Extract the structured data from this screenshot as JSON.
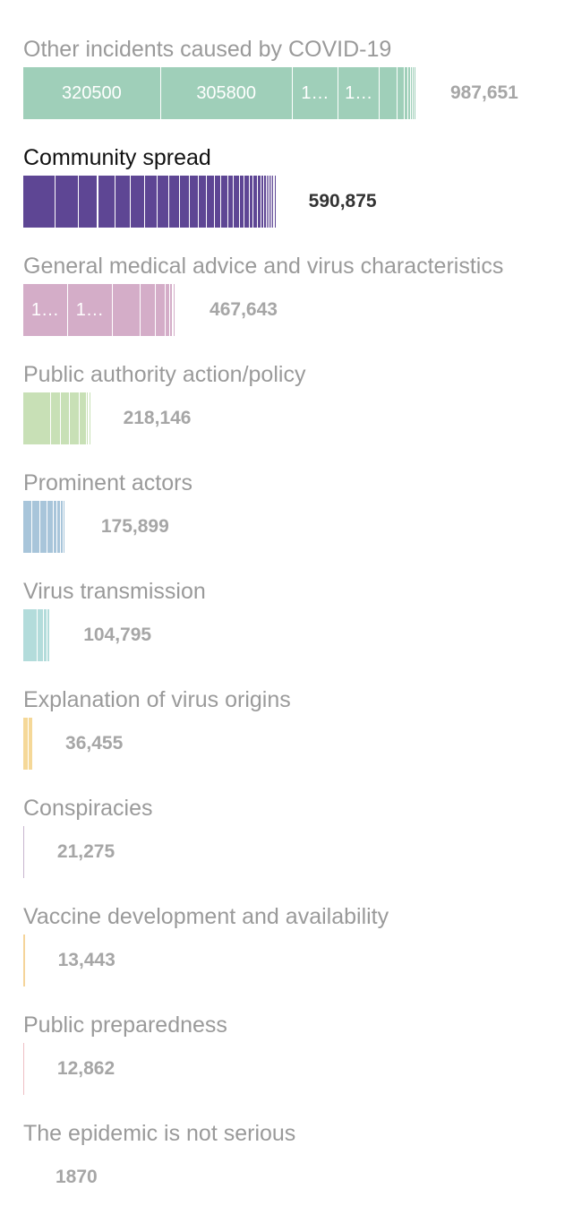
{
  "chart_data": {
    "type": "bar",
    "orientation": "horizontal",
    "stacked": true,
    "legend": "none",
    "grid": false,
    "xlim": [
      0,
      987651
    ],
    "categories": [
      {
        "label": "Other incidents caused by COVID-19",
        "total": "987,651",
        "value": 987651,
        "color": "#9fcfb9",
        "highlight": false,
        "segments": [
          {
            "value": 320500,
            "label": "320500"
          },
          {
            "value": 305800,
            "label": "305800"
          },
          {
            "value": 108000,
            "label": "1…"
          },
          {
            "value": 95000,
            "label": "1…"
          },
          {
            "value": 42000,
            "label": ""
          },
          {
            "value": 16000,
            "label": ""
          },
          {
            "value": 9000,
            "label": ""
          },
          {
            "value": 6000,
            "label": ""
          },
          {
            "value": 5000,
            "label": ""
          },
          {
            "value": 4000,
            "label": ""
          },
          {
            "value": 3000,
            "label": ""
          },
          {
            "value": 2500,
            "label": ""
          },
          {
            "value": 2000,
            "label": ""
          }
        ]
      },
      {
        "label": "Community spread",
        "total": "590,875",
        "value": 590875,
        "color": "#5e4694",
        "highlight": true,
        "segments": [
          {
            "value": 76000,
            "label": ""
          },
          {
            "value": 54000,
            "label": ""
          },
          {
            "value": 44000,
            "label": ""
          },
          {
            "value": 40000,
            "label": ""
          },
          {
            "value": 36000,
            "label": ""
          },
          {
            "value": 33000,
            "label": ""
          },
          {
            "value": 30000,
            "label": ""
          },
          {
            "value": 27000,
            "label": ""
          },
          {
            "value": 25000,
            "label": ""
          },
          {
            "value": 23000,
            "label": ""
          },
          {
            "value": 21000,
            "label": ""
          },
          {
            "value": 19000,
            "label": ""
          },
          {
            "value": 17500,
            "label": ""
          },
          {
            "value": 16000,
            "label": ""
          },
          {
            "value": 15000,
            "label": ""
          },
          {
            "value": 14000,
            "label": ""
          },
          {
            "value": 13000,
            "label": ""
          },
          {
            "value": 12000,
            "label": ""
          },
          {
            "value": 11000,
            "label": ""
          },
          {
            "value": 10000,
            "label": ""
          },
          {
            "value": 9000,
            "label": ""
          },
          {
            "value": 8000,
            "label": ""
          },
          {
            "value": 7000,
            "label": ""
          },
          {
            "value": 6000,
            "label": ""
          },
          {
            "value": 5000,
            "label": ""
          },
          {
            "value": 4500,
            "label": ""
          },
          {
            "value": 4000,
            "label": ""
          },
          {
            "value": 3500,
            "label": ""
          },
          {
            "value": 3000,
            "label": ""
          },
          {
            "value": 2500,
            "label": ""
          }
        ]
      },
      {
        "label": "General medical advice and virus characteristics",
        "total": "467,643",
        "value": 467643,
        "color": "#d4adc8",
        "highlight": false,
        "segments": [
          {
            "value": 104000,
            "label": "1…"
          },
          {
            "value": 104000,
            "label": "1…"
          },
          {
            "value": 64000,
            "label": ""
          },
          {
            "value": 37000,
            "label": ""
          },
          {
            "value": 22000,
            "label": ""
          },
          {
            "value": 10000,
            "label": ""
          },
          {
            "value": 6000,
            "label": ""
          },
          {
            "value": 4000,
            "label": ""
          },
          {
            "value": 3000,
            "label": ""
          },
          {
            "value": 2500,
            "label": ""
          },
          {
            "value": 2000,
            "label": ""
          }
        ]
      },
      {
        "label": "Public authority action/policy",
        "total": "218,146",
        "value": 218146,
        "color": "#c8e0b6",
        "highlight": false,
        "segments": [
          {
            "value": 64000,
            "label": ""
          },
          {
            "value": 23000,
            "label": ""
          },
          {
            "value": 22000,
            "label": ""
          },
          {
            "value": 23000,
            "label": ""
          },
          {
            "value": 15000,
            "label": ""
          },
          {
            "value": 5000,
            "label": ""
          },
          {
            "value": 3000,
            "label": ""
          },
          {
            "value": 2500,
            "label": ""
          }
        ]
      },
      {
        "label": "Prominent actors",
        "total": "175,899",
        "value": 175899,
        "color": "#a8c5da",
        "highlight": false,
        "segments": [
          {
            "value": 21000,
            "label": ""
          },
          {
            "value": 19000,
            "label": ""
          },
          {
            "value": 16000,
            "label": ""
          },
          {
            "value": 14000,
            "label": ""
          },
          {
            "value": 10000,
            "label": ""
          },
          {
            "value": 8000,
            "label": ""
          },
          {
            "value": 5000,
            "label": ""
          },
          {
            "value": 4000,
            "label": ""
          },
          {
            "value": 3000,
            "label": ""
          },
          {
            "value": 2500,
            "label": ""
          },
          {
            "value": 2000,
            "label": ""
          },
          {
            "value": 1500,
            "label": ""
          }
        ]
      },
      {
        "label": "Virus transmission",
        "total": "104,795",
        "value": 104795,
        "color": "#b3dcdb",
        "highlight": false,
        "segments": [
          {
            "value": 34000,
            "label": ""
          },
          {
            "value": 13000,
            "label": ""
          },
          {
            "value": 10000,
            "label": ""
          },
          {
            "value": 5000,
            "label": ""
          },
          {
            "value": 3000,
            "label": ""
          }
        ]
      },
      {
        "label": "Explanation of virus origins",
        "total": "36,455",
        "value": 36455,
        "color": "#f5d898",
        "highlight": false,
        "segments": [
          {
            "value": 13000,
            "label": ""
          },
          {
            "value": 10000,
            "label": ""
          }
        ]
      },
      {
        "label": "Conspiracies",
        "total": "21,275",
        "value": 21275,
        "color": "#c7b5cf",
        "highlight": false,
        "segments": [
          {
            "value": 4000,
            "label": ""
          }
        ]
      },
      {
        "label": "Vaccine development and availability",
        "total": "13,443",
        "value": 13443,
        "color": "#f5d49a",
        "highlight": false,
        "segments": [
          {
            "value": 5500,
            "label": ""
          }
        ]
      },
      {
        "label": "Public preparedness",
        "total": "12,862",
        "value": 12862,
        "color": "#eebfc4",
        "highlight": false,
        "segments": [
          {
            "value": 4000,
            "label": ""
          }
        ]
      },
      {
        "label": "The epidemic is not serious",
        "total": "1870",
        "value": 1870,
        "color": "#dddddd",
        "highlight": false,
        "segments": []
      }
    ]
  }
}
